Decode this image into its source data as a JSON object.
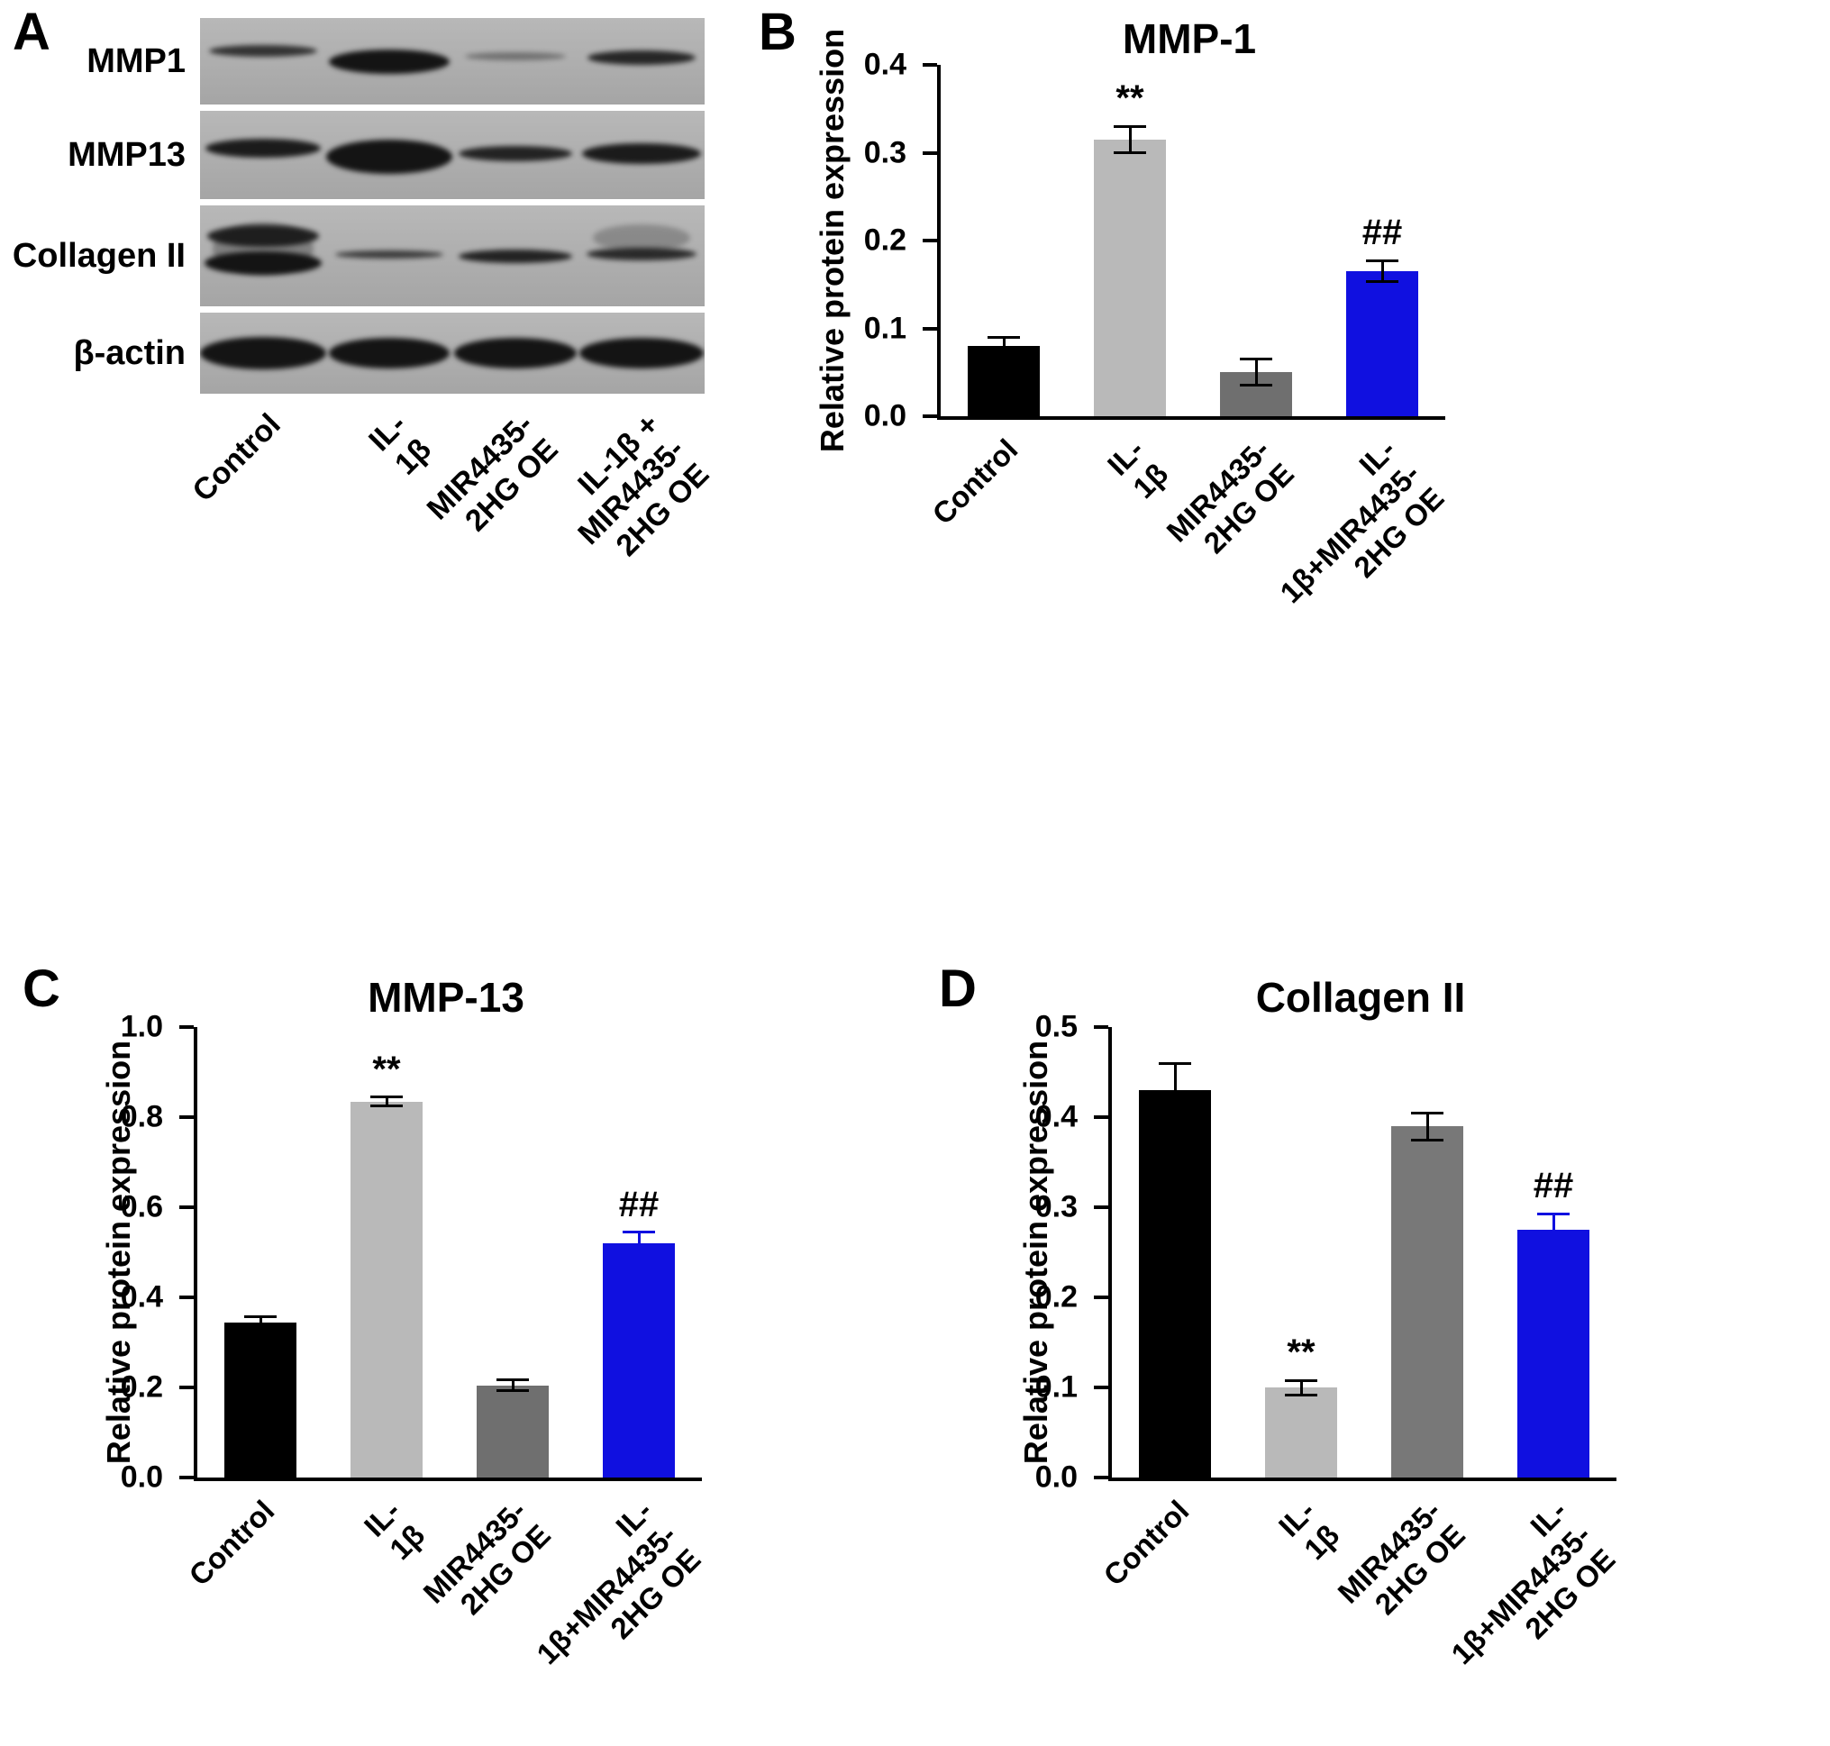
{
  "panels": {
    "a": "A",
    "b": "B",
    "c": "C",
    "d": "D"
  },
  "blot": {
    "lane_labels": [
      "Control",
      "IL-1β",
      "MIR4435-2HG OE",
      "IL-1β +\nMIR4435-2HG OE"
    ],
    "rows": [
      {
        "label": "MMP1",
        "h": 96,
        "lanes": [
          [
            {
              "w": 120,
              "h": 13,
              "o": 0.8,
              "dy": -12
            }
          ],
          [
            {
              "w": 134,
              "h": 27,
              "o": 1,
              "dy": 0
            }
          ],
          [
            {
              "w": 112,
              "h": 9,
              "o": 0.4,
              "dy": -6
            }
          ],
          [
            {
              "w": 120,
              "h": 16,
              "o": 0.88,
              "dy": -4
            }
          ]
        ]
      },
      {
        "label": "MMP13",
        "h": 98,
        "lanes": [
          [
            {
              "w": 128,
              "h": 21,
              "o": 0.95,
              "dy": -8
            }
          ],
          [
            {
              "w": 140,
              "h": 38,
              "o": 1,
              "dy": 2
            }
          ],
          [
            {
              "w": 126,
              "h": 17,
              "o": 0.9,
              "dy": -2
            }
          ],
          [
            {
              "w": 132,
              "h": 23,
              "o": 0.95,
              "dy": -2
            }
          ]
        ]
      },
      {
        "label": "Collagen II",
        "h": 112,
        "lanes": [
          [
            {
              "w": 124,
              "h": 24,
              "o": 0.9,
              "dy": -22
            },
            {
              "w": 130,
              "h": 26,
              "o": 1,
              "dy": 8
            },
            {
              "w": 112,
              "h": 58,
              "o": 0.3,
              "dy": -8
            }
          ],
          [
            {
              "w": 120,
              "h": 9,
              "o": 0.75,
              "dy": -2
            }
          ],
          [
            {
              "w": 126,
              "h": 15,
              "o": 0.9,
              "dy": 0
            }
          ],
          [
            {
              "w": 122,
              "h": 14,
              "o": 0.85,
              "dy": -2
            },
            {
              "w": 108,
              "h": 30,
              "o": 0.25,
              "dy": -20
            }
          ]
        ]
      },
      {
        "label": "β-actin",
        "h": 90,
        "lanes": [
          [
            {
              "w": 140,
              "h": 36,
              "o": 1,
              "dy": 0
            }
          ],
          [
            {
              "w": 134,
              "h": 34,
              "o": 1,
              "dy": 0
            }
          ],
          [
            {
              "w": 136,
              "h": 34,
              "o": 1,
              "dy": 0
            }
          ],
          [
            {
              "w": 138,
              "h": 34,
              "o": 1,
              "dy": 0
            }
          ]
        ]
      }
    ]
  },
  "chart_data": [
    {
      "panel": "B",
      "type": "bar",
      "title": "MMP-1",
      "ylabel": "Relative protein expression",
      "ylim": [
        0,
        0.4
      ],
      "yticks": [
        0,
        0.1,
        0.2,
        0.3,
        0.4
      ],
      "ytick_labels": [
        "0.0",
        "0.1",
        "0.2",
        "0.3",
        "0.4"
      ],
      "categories": [
        "Control",
        "IL-1β",
        "MIR4435-2HG OE",
        "IL-1β+MIR4435-2HG OE"
      ],
      "values": [
        0.08,
        0.315,
        0.05,
        0.165
      ],
      "errors": [
        0.01,
        0.015,
        0.015,
        0.012
      ],
      "annotations": [
        "",
        "**",
        "",
        "##"
      ],
      "colors": [
        "#000000",
        "#b9b9b9",
        "#6f6f6f",
        "#1010e0"
      ],
      "error_colors": [
        "#000000",
        "#000000",
        "#000000",
        "#000000"
      ],
      "grid": false,
      "legend": "none"
    },
    {
      "panel": "C",
      "type": "bar",
      "title": "MMP-13",
      "ylabel": "Relative protein expression",
      "ylim": [
        0,
        1.0
      ],
      "yticks": [
        0,
        0.2,
        0.4,
        0.6,
        0.8,
        1.0
      ],
      "ytick_labels": [
        "0.0",
        "0.2",
        "0.4",
        "0.6",
        "0.8",
        "1.0"
      ],
      "categories": [
        "Control",
        "IL-1β",
        "MIR4435-2HG OE",
        "IL-1β+MIR4435-2HG OE"
      ],
      "values": [
        0.345,
        0.835,
        0.205,
        0.52
      ],
      "errors": [
        0.012,
        0.01,
        0.012,
        0.025
      ],
      "annotations": [
        "",
        "**",
        "",
        "##"
      ],
      "colors": [
        "#000000",
        "#b9b9b9",
        "#6f6f6f",
        "#1010e0"
      ],
      "error_colors": [
        "#000000",
        "#000000",
        "#000000",
        "#1010e0"
      ],
      "grid": false,
      "legend": "none"
    },
    {
      "panel": "D",
      "type": "bar",
      "title": "Collagen II",
      "ylabel": "Relative protein expression",
      "ylim": [
        0,
        0.5
      ],
      "yticks": [
        0,
        0.1,
        0.2,
        0.3,
        0.4,
        0.5
      ],
      "ytick_labels": [
        "0.0",
        "0.1",
        "0.2",
        "0.3",
        "0.4",
        "0.5"
      ],
      "categories": [
        "Control",
        "IL-1β",
        "MIR4435-2HG OE",
        "IL-1β+MIR4435-2HG OE"
      ],
      "values": [
        0.43,
        0.1,
        0.39,
        0.275
      ],
      "errors": [
        0.03,
        0.008,
        0.015,
        0.018
      ],
      "annotations": [
        "",
        "**",
        "",
        "##"
      ],
      "colors": [
        "#000000",
        "#b9b9b9",
        "#787878",
        "#1010e0"
      ],
      "error_colors": [
        "#000000",
        "#000000",
        "#000000",
        "#1010e0"
      ],
      "grid": false,
      "legend": "none"
    }
  ]
}
